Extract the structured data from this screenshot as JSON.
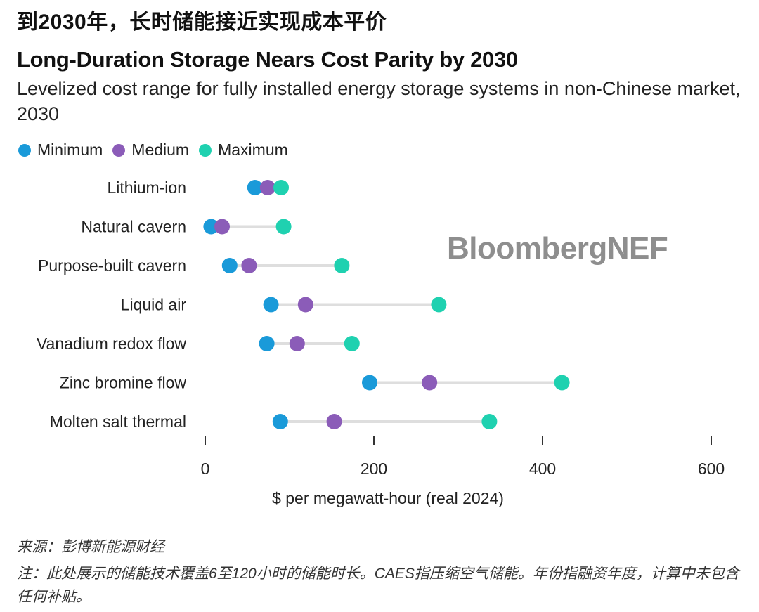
{
  "header": {
    "cn_title": "到2030年，长时储能接近实现成本平价",
    "title": "Long-Duration Storage Nears Cost Parity by 2030",
    "subtitle": "Levelized cost range for fully installed energy storage systems in non-Chinese market, 2030"
  },
  "watermark": "BloombergNEF",
  "footer": {
    "source": "来源：彭博新能源财经",
    "note": "注：此处展示的储能技术覆盖6至120小时的储能时长。CAES指压缩空气储能。年份指融资年度，计算中未包含任何补贴。"
  },
  "colors": {
    "minimum": "#1a9ad9",
    "medium": "#8b5cb8",
    "maximum": "#1fd1b0",
    "range_line": "#dedede"
  },
  "chart_data": {
    "type": "scatter",
    "subtype": "dumbbell",
    "title": "Long-Duration Storage Nears Cost Parity by 2030",
    "subtitle": "Levelized cost range for fully installed energy storage systems in non-Chinese market, 2030",
    "xlabel": "$ per megawatt-hour (real 2024)",
    "ylabel": "",
    "xlim": [
      0,
      600
    ],
    "xticks": [
      0,
      200,
      400,
      600
    ],
    "grid": false,
    "legend": {
      "position": "top-left",
      "entries": [
        "Minimum",
        "Medium",
        "Maximum"
      ]
    },
    "categories": [
      "Lithium-ion",
      "Natural cavern",
      "Purpose-built cavern",
      "Liquid air",
      "Vanadium redox flow",
      "Zinc bromine flow",
      "Molten salt thermal"
    ],
    "series": [
      {
        "name": "Minimum",
        "color": "#1a9ad9",
        "values": [
          59,
          7,
          29,
          78,
          73,
          195,
          89
        ]
      },
      {
        "name": "Medium",
        "color": "#8b5cb8",
        "values": [
          74,
          20,
          52,
          119,
          109,
          266,
          153
        ]
      },
      {
        "name": "Maximum",
        "color": "#1fd1b0",
        "values": [
          90,
          93,
          162,
          277,
          174,
          423,
          337
        ]
      }
    ]
  }
}
